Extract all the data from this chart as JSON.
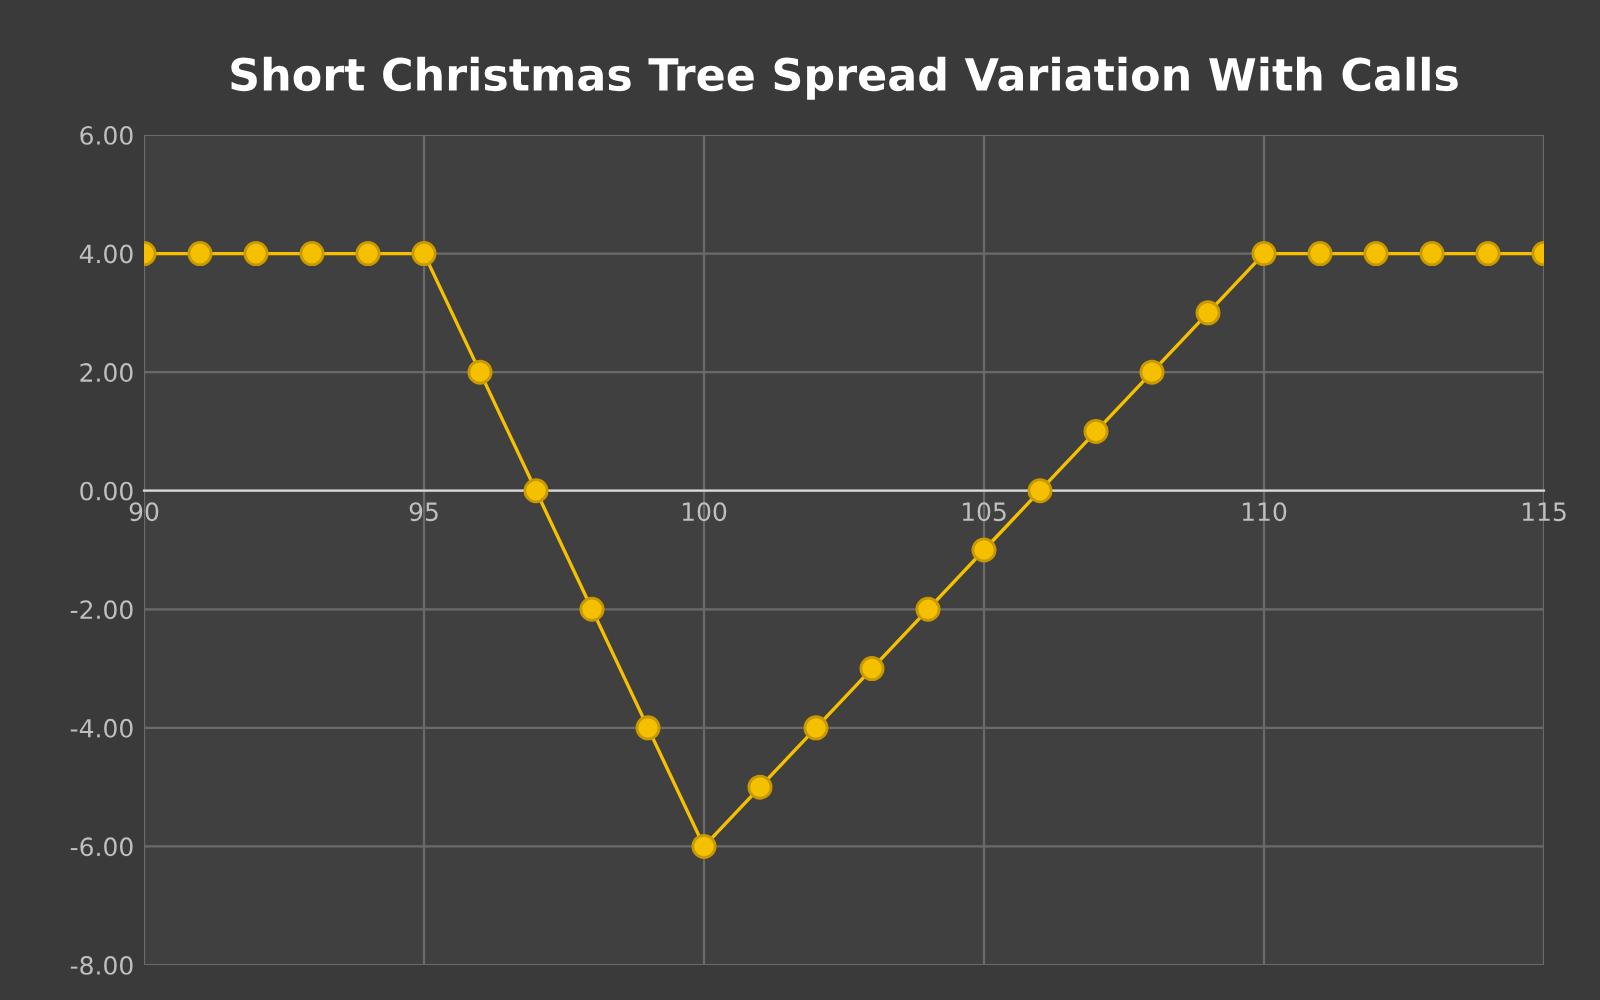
{
  "chart_data": {
    "type": "line",
    "title": "Short Christmas Tree Spread Variation With Calls",
    "x": [
      90,
      91,
      92,
      93,
      94,
      95,
      96,
      97,
      98,
      99,
      100,
      101,
      102,
      103,
      104,
      105,
      106,
      107,
      108,
      109,
      110,
      111,
      112,
      113,
      114,
      115
    ],
    "series": [
      {
        "color": "#f5c000",
        "values": [
          4,
          4,
          4,
          4,
          4,
          4,
          2,
          0,
          -2,
          -4,
          -6,
          -5,
          -4,
          -3,
          -2,
          -1,
          0,
          1,
          2,
          3,
          4,
          4,
          4,
          4,
          4,
          4
        ]
      }
    ],
    "xlim": [
      90,
      115
    ],
    "xticks": [
      90,
      95,
      100,
      105,
      110,
      115
    ],
    "ylim": [
      -8,
      6
    ],
    "yticks": [
      {
        "value": -8,
        "label": "-8.00"
      },
      {
        "value": -6,
        "label": "-6.00"
      },
      {
        "value": -4,
        "label": "-4.00"
      },
      {
        "value": -2,
        "label": "-2.00"
      },
      {
        "value": 0,
        "label": "0.00"
      },
      {
        "value": 2,
        "label": "2.00"
      },
      {
        "value": 4,
        "label": "4.00"
      },
      {
        "value": 6,
        "label": "6.00"
      }
    ],
    "grid": true,
    "marker": "circle",
    "line_style": "solid"
  }
}
